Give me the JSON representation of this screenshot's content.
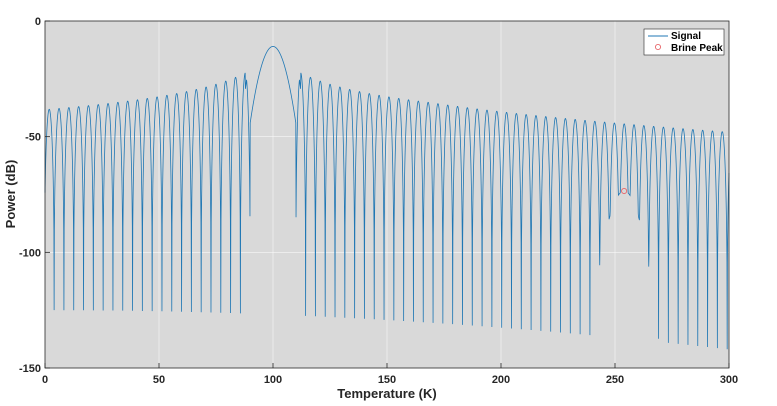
{
  "chart_data": {
    "type": "line",
    "title": "",
    "xlabel": "Temperature (K)",
    "ylabel": "Power (dB)",
    "xlim": [
      0,
      300
    ],
    "ylim": [
      -150,
      0
    ],
    "xticks": [
      0,
      50,
      100,
      150,
      200,
      250,
      300
    ],
    "yticks": [
      0,
      -50,
      -100,
      -150
    ],
    "grid": true,
    "legend_position": "top-right",
    "background_color": "#d9d9d9",
    "series": [
      {
        "name": "Signal",
        "color": "#1f77b4",
        "style": "line",
        "main_lobe": {
          "center": 100,
          "peak": -11,
          "half_width": 10
        },
        "secondary_lobe": {
          "center": 254,
          "peak": -73.5,
          "half_width": 10
        },
        "sidelobe_spacing": 4.3,
        "floor_range": [
          -125,
          -142
        ]
      },
      {
        "name": "Brine Peak",
        "color": "#e8676b",
        "style": "marker",
        "marker": "circle",
        "x": [
          254
        ],
        "y": [
          -73.5
        ]
      }
    ]
  }
}
